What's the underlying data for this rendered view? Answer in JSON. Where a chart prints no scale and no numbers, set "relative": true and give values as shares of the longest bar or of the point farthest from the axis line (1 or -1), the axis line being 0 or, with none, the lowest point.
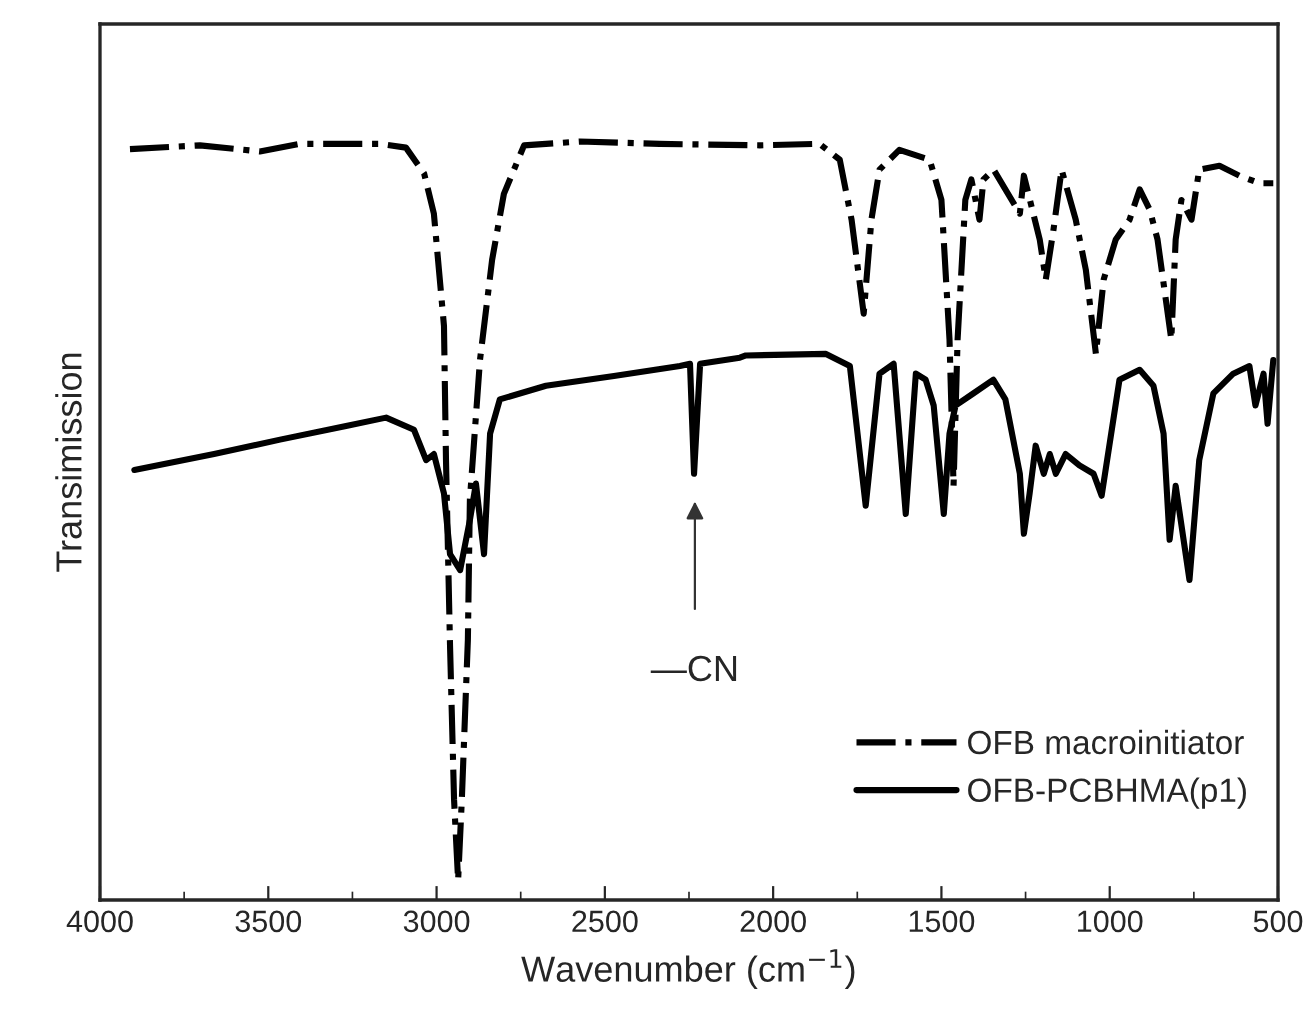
{
  "chart_data": {
    "type": "line",
    "relative": true,
    "xlabel": "Wavenumber (cm$^{−1}$)",
    "ylabel": "Transimission",
    "xlim": [
      4000,
      500
    ],
    "xticks": [
      4000,
      3500,
      3000,
      2500,
      2000,
      1500,
      1000,
      500
    ],
    "tick_labels": "x",
    "grid": false,
    "legend": "bottom right",
    "marker": "none",
    "series": [
      {
        "name": "OFB macroinitiator",
        "color": "#000000",
        "line_style": "dashdot",
        "x": [
          3911,
          3703,
          3525,
          3406,
          3168,
          3091,
          3037,
          3008,
          2978,
          2972,
          2960,
          2948,
          2936,
          2925,
          2907,
          2901,
          2871,
          2835,
          2800,
          2740,
          2574,
          2337,
          2040,
          1862,
          1802,
          1767,
          1731,
          1708,
          1684,
          1625,
          1535,
          1500,
          1476,
          1464,
          1452,
          1429,
          1411,
          1387,
          1375,
          1345,
          1267,
          1255,
          1208,
          1190,
          1167,
          1143,
          1101,
          1071,
          1041,
          1018,
          982,
          941,
          911,
          881,
          858,
          817,
          804,
          787,
          757,
          734,
          674,
          615,
          555,
          514
        ],
        "values": [
          0.99,
          0.995,
          0.987,
          0.997,
          0.997,
          0.992,
          0.958,
          0.905,
          0.757,
          0.58,
          0.335,
          0.132,
          0.026,
          0.132,
          0.343,
          0.528,
          0.712,
          0.844,
          0.931,
          0.995,
          1.0,
          0.997,
          0.995,
          0.997,
          0.976,
          0.897,
          0.773,
          0.897,
          0.963,
          0.989,
          0.976,
          0.923,
          0.739,
          0.546,
          0.739,
          0.923,
          0.95,
          0.897,
          0.95,
          0.963,
          0.905,
          0.955,
          0.871,
          0.818,
          0.884,
          0.963,
          0.897,
          0.831,
          0.72,
          0.818,
          0.871,
          0.897,
          0.937,
          0.91,
          0.871,
          0.739,
          0.871,
          0.923,
          0.897,
          0.963,
          0.968,
          0.955,
          0.945,
          0.945
        ]
      },
      {
        "name": "OFB-PCBHMA(p1)",
        "color": "#000000",
        "line_style": "solid",
        "x": [
          3898,
          3661,
          3465,
          3269,
          3150,
          3067,
          3031,
          3008,
          2978,
          2960,
          2930,
          2901,
          2883,
          2859,
          2841,
          2812,
          2675,
          2473,
          2277,
          2247,
          2235,
          2217,
          2099,
          2081,
          1843,
          1772,
          1725,
          1684,
          1642,
          1606,
          1576,
          1547,
          1523,
          1493,
          1476,
          1458,
          1405,
          1346,
          1310,
          1267,
          1255,
          1238,
          1220,
          1196,
          1178,
          1160,
          1131,
          1090,
          1048,
          1024,
          971,
          911,
          870,
          840,
          822,
          804,
          763,
          734,
          692,
          633,
          585,
          567,
          543,
          531,
          514
        ],
        "values": [
          0.567,
          0.588,
          0.607,
          0.625,
          0.636,
          0.62,
          0.58,
          0.588,
          0.536,
          0.456,
          0.435,
          0.501,
          0.549,
          0.456,
          0.615,
          0.66,
          0.678,
          0.691,
          0.704,
          0.707,
          0.562,
          0.707,
          0.715,
          0.718,
          0.72,
          0.704,
          0.52,
          0.694,
          0.707,
          0.509,
          0.694,
          0.686,
          0.652,
          0.509,
          0.615,
          0.652,
          0.668,
          0.686,
          0.66,
          0.562,
          0.483,
          0.536,
          0.599,
          0.562,
          0.588,
          0.562,
          0.588,
          0.573,
          0.562,
          0.533,
          0.686,
          0.699,
          0.678,
          0.615,
          0.475,
          0.546,
          0.422,
          0.58,
          0.668,
          0.694,
          0.704,
          0.652,
          0.694,
          0.628,
          0.712
        ]
      }
    ],
    "annotations": [
      "—CN"
    ]
  }
}
